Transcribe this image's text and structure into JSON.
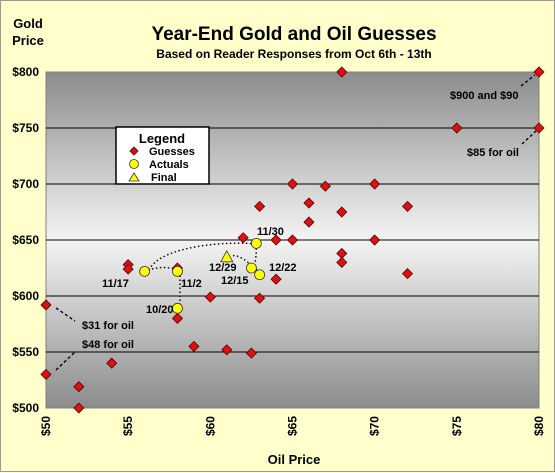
{
  "chart_data": {
    "type": "scatter",
    "title": "Year-End Gold and Oil Guesses",
    "subtitle": "Based on Reader Responses from Oct 6th - 13th",
    "xlabel": "Oil Price",
    "ylabel": "Gold Price",
    "xlim": [
      50,
      80
    ],
    "ylim": [
      500,
      800
    ],
    "x_ticks": [
      "$50",
      "$55",
      "$60",
      "$65",
      "$70",
      "$75",
      "$80"
    ],
    "y_ticks": [
      "$500",
      "$550",
      "$600",
      "$650",
      "$700",
      "$750",
      "$800"
    ],
    "grid": true,
    "legend": {
      "title": "Legend",
      "position": "upper-left",
      "entries": [
        "Guesses",
        "Actuals",
        "Final"
      ]
    },
    "series": [
      {
        "name": "Guesses",
        "marker": "diamond",
        "color": "#dd1111",
        "points": [
          [
            50,
            592
          ],
          [
            50,
            530
          ],
          [
            52,
            519
          ],
          [
            52,
            500
          ],
          [
            54,
            540
          ],
          [
            55,
            628
          ],
          [
            55,
            624
          ],
          [
            58,
            625
          ],
          [
            58,
            580
          ],
          [
            59,
            555
          ],
          [
            60,
            599
          ],
          [
            61,
            552
          ],
          [
            62,
            652
          ],
          [
            62.5,
            549
          ],
          [
            63,
            680
          ],
          [
            63,
            598
          ],
          [
            64,
            650
          ],
          [
            64,
            615
          ],
          [
            65,
            700
          ],
          [
            65,
            650
          ],
          [
            66,
            683
          ],
          [
            66,
            666
          ],
          [
            67,
            698
          ],
          [
            68,
            800
          ],
          [
            68,
            675
          ],
          [
            68,
            638
          ],
          [
            68,
            630
          ],
          [
            70,
            700
          ],
          [
            70,
            650
          ],
          [
            72,
            680
          ],
          [
            72,
            620
          ],
          [
            75,
            750
          ],
          [
            80,
            800
          ],
          [
            80,
            750
          ]
        ]
      },
      {
        "name": "Actuals",
        "marker": "circle",
        "color": "#ffff00",
        "points": [
          [
            56,
            622
          ],
          [
            58,
            622
          ],
          [
            58,
            589
          ],
          [
            62.8,
            647
          ],
          [
            62.5,
            625
          ],
          [
            63,
            619
          ]
        ],
        "labels": [
          "11/17",
          "11/2",
          "10/20",
          "11/30",
          "12/15",
          "12/22"
        ]
      },
      {
        "name": "Final",
        "marker": "triangle",
        "color": "#ffff00",
        "points": [
          [
            61,
            635
          ]
        ],
        "labels": [
          "12/29"
        ]
      }
    ],
    "annotations": [
      "$900 and $90",
      "$85 for oil",
      "$31 for oil",
      "$48 for oil"
    ]
  },
  "colors": {
    "background": "#ffffcc",
    "plot_top": "#8c8c8c",
    "plot_mid": "#f4f4f4",
    "plot_bottom": "#8c8c8c",
    "guess": "#dd1111",
    "actual": "#ffff00"
  }
}
